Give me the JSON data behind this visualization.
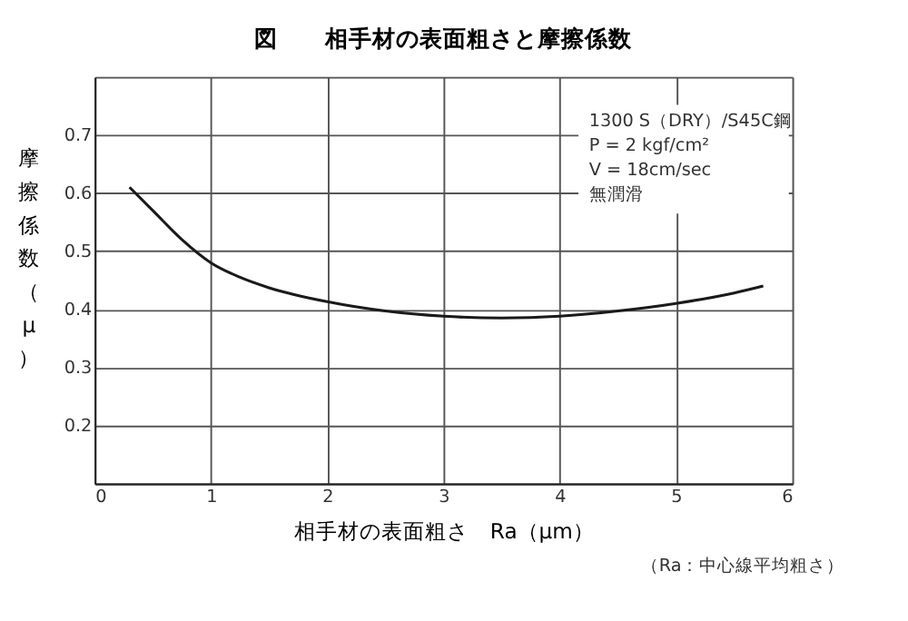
{
  "chart_data": {
    "type": "line",
    "title": "図　　相手材の表面粗さと摩擦係数",
    "xlabel": "相手材の表面粗さ　Ra（μm）",
    "ylabel": "摩擦係数（μ）",
    "series": [
      {
        "color": "#1a1a1a",
        "x": [
          0.3,
          0.5,
          0.75,
          1.0,
          1.25,
          1.5,
          2.0,
          2.5,
          3.0,
          3.5,
          4.0,
          4.5,
          5.0,
          5.5,
          5.75
        ],
        "values": [
          0.61,
          0.57,
          0.52,
          0.48,
          0.455,
          0.437,
          0.413,
          0.397,
          0.388,
          0.385,
          0.388,
          0.397,
          0.41,
          0.428,
          0.44
        ]
      }
    ],
    "xlim": [
      0,
      6
    ],
    "xticks": [
      0,
      1,
      2,
      3,
      4,
      5,
      6
    ],
    "ylim": [
      0.1,
      0.8
    ],
    "yticks": [
      {
        "value": 0.1,
        "label": null
      },
      0.2,
      0.3,
      0.4,
      0.5,
      0.6,
      0.7,
      {
        "value": 0.8,
        "label": null
      }
    ],
    "grid": true,
    "marker": "none",
    "line_style": "solid",
    "annotations": [
      "1300 S（DRY）/S45C鋼\nP = 2 kgf/cm²\nV = 18cm/sec\n　無潤滑",
      "（Ra：中心線平均粗さ）"
    ]
  }
}
